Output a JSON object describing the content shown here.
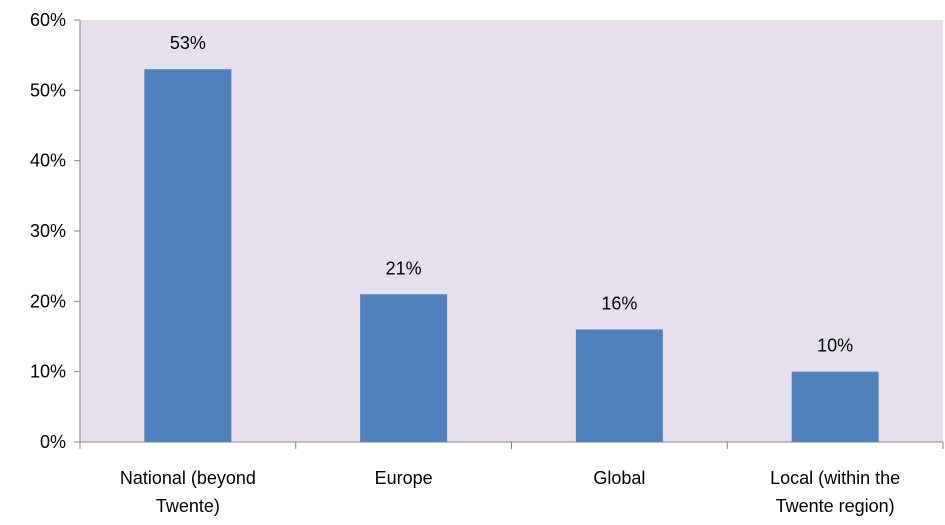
{
  "chart_data": {
    "type": "bar",
    "title": "",
    "xlabel": "",
    "ylabel": "",
    "categories": [
      [
        "National (beyond",
        "Twente)"
      ],
      [
        "Europe"
      ],
      [
        "Global"
      ],
      [
        "Local (within the",
        "Twente region)"
      ]
    ],
    "values": [
      53,
      21,
      16,
      10
    ],
    "data_labels": [
      "53%",
      "21%",
      "16%",
      "10%"
    ],
    "ylim": [
      0,
      60
    ],
    "yticks": [
      0,
      10,
      20,
      30,
      40,
      50,
      60
    ],
    "ytick_labels": [
      "0%",
      "10%",
      "20%",
      "30%",
      "40%",
      "50%",
      "60%"
    ],
    "grid": false,
    "legend": "none",
    "colors": {
      "plot_background": "#e6e0ec",
      "bar": "#4f81bd",
      "axis": "#868686"
    }
  }
}
